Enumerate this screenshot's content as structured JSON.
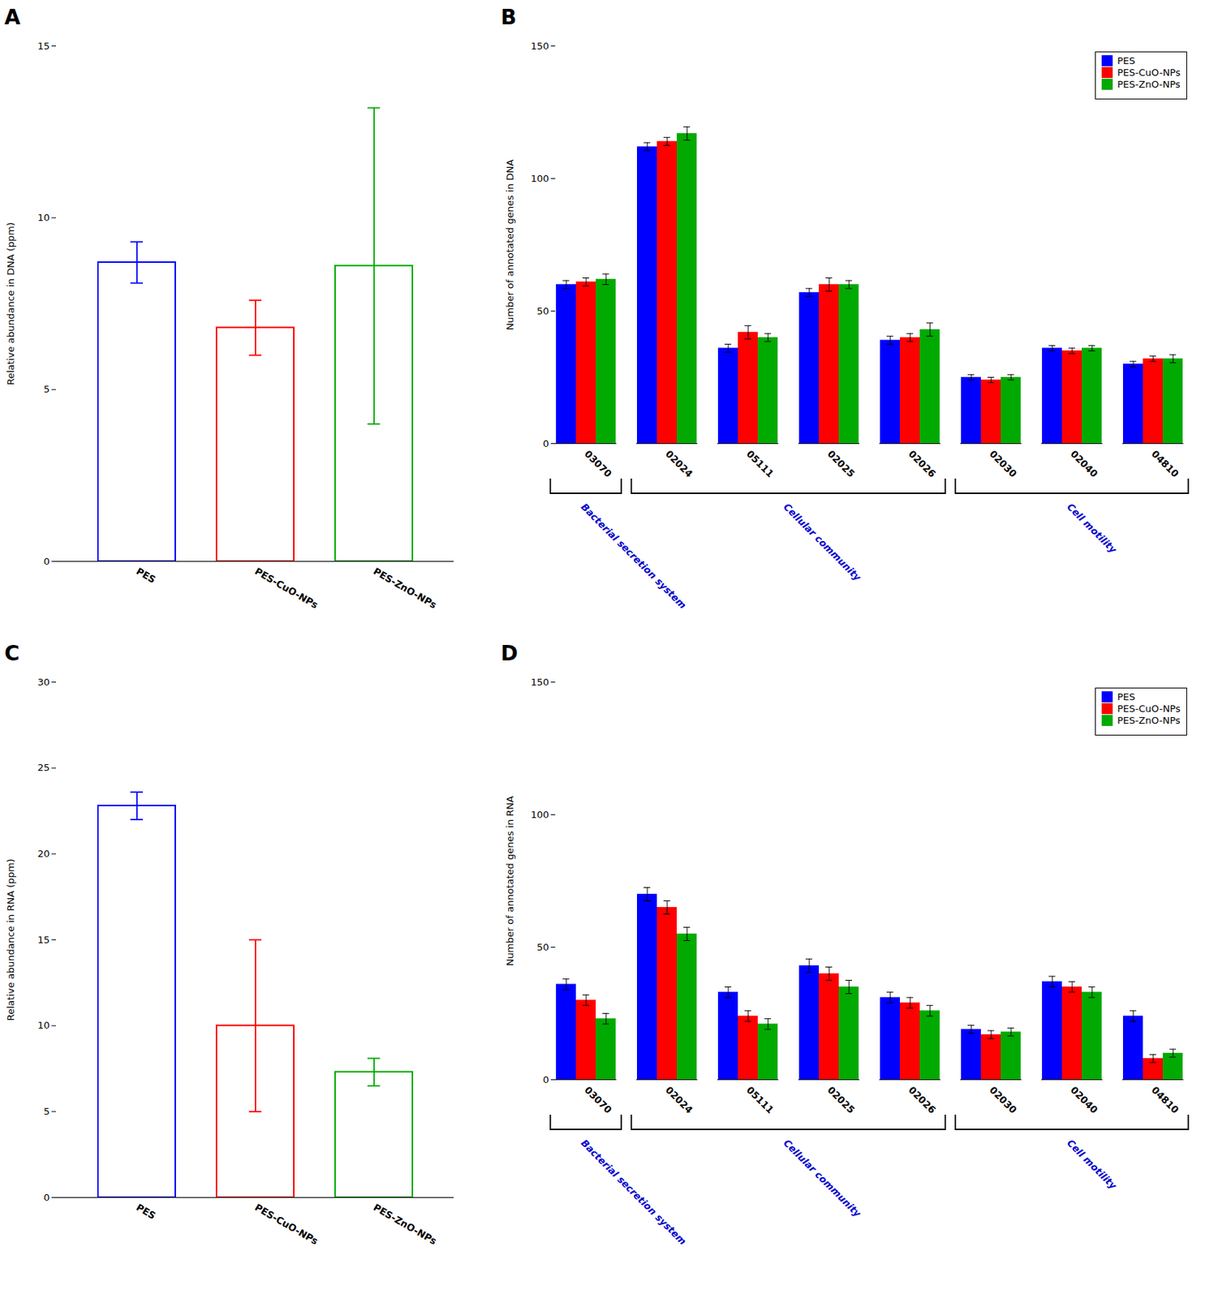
{
  "chart_data": [
    {
      "type": "bar",
      "title": "A",
      "categories": [
        "PES",
        "PES-CuO-NPs",
        "PES-ZnO-NPs"
      ],
      "values": [
        8.7,
        6.8,
        8.6
      ],
      "errors": [
        0.6,
        0.8,
        4.6
      ],
      "colors": [
        "#0000FF",
        "#FF0000",
        "#00AA00"
      ],
      "ylabel": "Relative abundance in DNA (ppm)",
      "ylim": [
        0,
        15
      ],
      "yticks": [
        0,
        5,
        10,
        15
      ],
      "grid": false
    },
    {
      "type": "bar",
      "title": "B",
      "categories": [
        "03070",
        "02024",
        "05111",
        "02025",
        "02026",
        "02030",
        "02040",
        "04810"
      ],
      "series": [
        {
          "name": "PES",
          "color": "#0000FF",
          "values": [
            60,
            112,
            36,
            57,
            39,
            25,
            36,
            30
          ],
          "errors": [
            1.5,
            1.5,
            1.5,
            1.5,
            1.5,
            1.0,
            1.0,
            1.0
          ]
        },
        {
          "name": "PES-CuO-NPs",
          "color": "#FF0000",
          "values": [
            61,
            114,
            42,
            60,
            40,
            24,
            35,
            32
          ],
          "errors": [
            1.5,
            1.5,
            2.5,
            2.5,
            1.5,
            1.0,
            1.0,
            1.0
          ]
        },
        {
          "name": "PES-ZnO-NPs",
          "color": "#00AA00",
          "values": [
            62,
            117,
            40,
            60,
            43,
            25,
            36,
            32
          ],
          "errors": [
            2.0,
            2.5,
            1.5,
            1.5,
            2.5,
            1.0,
            1.0,
            1.5
          ]
        }
      ],
      "ylabel": "Number of annotated genes in DNA",
      "ylim": [
        0,
        150
      ],
      "yticks": [
        0,
        50,
        100,
        150
      ],
      "grid": false,
      "legend": "upper right",
      "annotations": [
        {
          "text": "Bacterial secretion system",
          "from": "03070",
          "to": "03070",
          "color": "#0000CC"
        },
        {
          "text": "Cellular community",
          "from": "02024",
          "to": "02026",
          "color": "#0000CC"
        },
        {
          "text": "Cell motility",
          "from": "02030",
          "to": "04810",
          "color": "#0000CC"
        }
      ]
    },
    {
      "type": "bar",
      "title": "C",
      "categories": [
        "PES",
        "PES-CuO-NPs",
        "PES-ZnO-NPs"
      ],
      "values": [
        22.8,
        10.0,
        7.3
      ],
      "errors": [
        0.8,
        5.0,
        0.8
      ],
      "colors": [
        "#0000FF",
        "#FF0000",
        "#00AA00"
      ],
      "ylabel": "Relative abundance in RNA (ppm)",
      "ylim": [
        0,
        30
      ],
      "yticks": [
        0,
        5,
        10,
        15,
        20,
        25,
        30
      ],
      "grid": false
    },
    {
      "type": "bar",
      "title": "D",
      "categories": [
        "03070",
        "02024",
        "05111",
        "02025",
        "02026",
        "02030",
        "02040",
        "04810"
      ],
      "series": [
        {
          "name": "PES",
          "color": "#0000FF",
          "values": [
            36,
            70,
            33,
            43,
            31,
            19,
            37,
            24
          ],
          "errors": [
            2.0,
            2.5,
            2.0,
            2.5,
            2.0,
            1.5,
            2.0,
            2.0
          ]
        },
        {
          "name": "PES-CuO-NPs",
          "color": "#FF0000",
          "values": [
            30,
            65,
            24,
            40,
            29,
            17,
            35,
            8
          ],
          "errors": [
            2.0,
            2.5,
            2.0,
            2.5,
            2.0,
            1.5,
            2.0,
            1.5
          ]
        },
        {
          "name": "PES-ZnO-NPs",
          "color": "#00AA00",
          "values": [
            23,
            55,
            21,
            35,
            26,
            18,
            33,
            10
          ],
          "errors": [
            2.0,
            2.5,
            2.0,
            2.5,
            2.0,
            1.5,
            2.0,
            1.5
          ]
        }
      ],
      "ylabel": "Number of annotated genes in RNA",
      "ylim": [
        0,
        150
      ],
      "yticks": [
        0,
        50,
        100,
        150
      ],
      "grid": false,
      "legend": "upper right",
      "annotations": [
        {
          "text": "Bacterial secretion system",
          "from": "03070",
          "to": "03070",
          "color": "#0000CC"
        },
        {
          "text": "Cellular community",
          "from": "02024",
          "to": "02026",
          "color": "#0000CC"
        },
        {
          "text": "Cell motility",
          "from": "02030",
          "to": "04810",
          "color": "#0000CC"
        }
      ]
    }
  ]
}
